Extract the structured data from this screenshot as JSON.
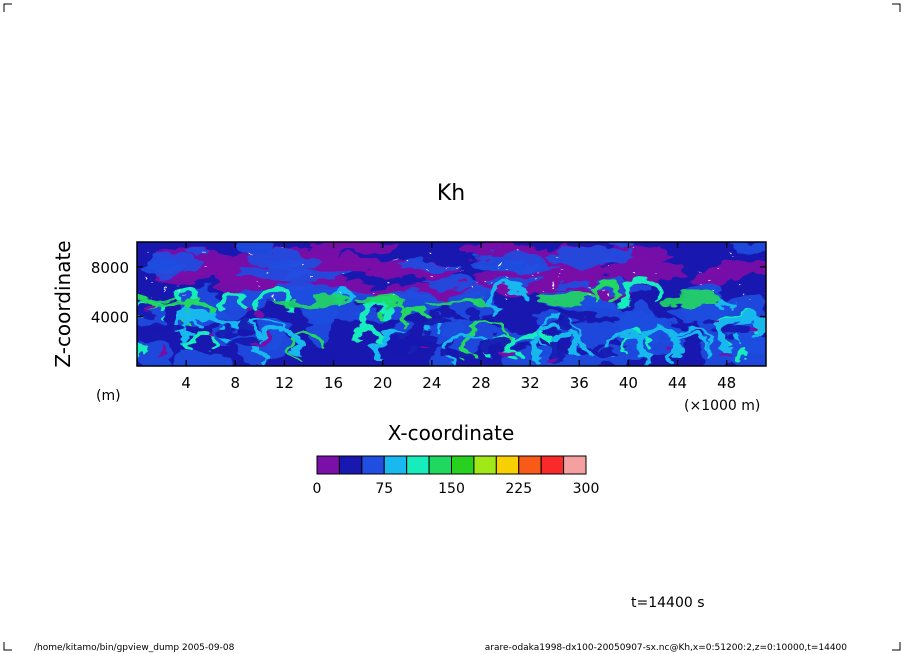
{
  "chart_data": {
    "type": "heatmap",
    "title": "Kh",
    "xlabel": "X-coordinate",
    "ylabel": "Z-coordinate",
    "x_unit": "(×1000 m)",
    "y_unit": "(m)",
    "xlim": [
      0,
      51.2
    ],
    "ylim": [
      0,
      10000
    ],
    "xticks": [
      4,
      8,
      12,
      16,
      20,
      24,
      28,
      32,
      36,
      40,
      44,
      48
    ],
    "yticks": [
      4000,
      8000
    ],
    "colorbar": {
      "levels": [
        0,
        25,
        50,
        75,
        100,
        125,
        150,
        175,
        200,
        225,
        250,
        275,
        300
      ],
      "colors": [
        "#7a10a8",
        "#1818b0",
        "#1f4ee0",
        "#19b8ee",
        "#18ecbc",
        "#20d860",
        "#28d020",
        "#a0e818",
        "#f8d000",
        "#f85a18",
        "#f82a2a",
        "#f4a0a0"
      ],
      "tick_labels": [
        "0",
        "75",
        "150",
        "225",
        "300"
      ],
      "tick_values": [
        0,
        75,
        150,
        225,
        300
      ]
    },
    "time_label": "t=14400 s"
  },
  "footer": {
    "left": "/home/kitamo/bin/gpview_dump  2005-09-08",
    "right": "arare-odaka1998-dx100-20050907-sx.nc@Kh,x=0:51200:2,z=0:10000,t=14400"
  }
}
